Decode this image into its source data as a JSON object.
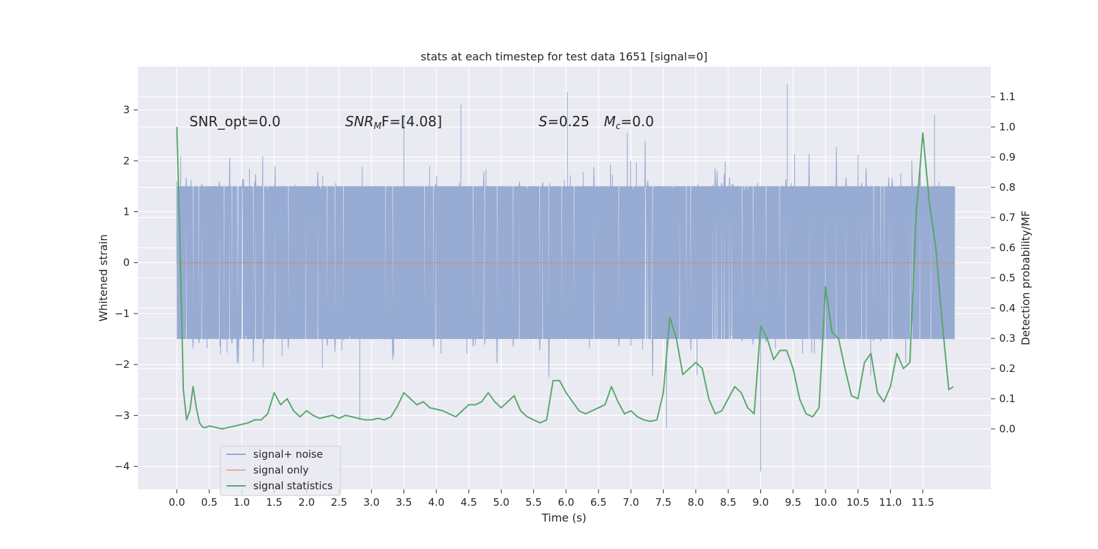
{
  "chart_data": {
    "type": "line",
    "title": "stats at each timestep for test data 1651 [signal=0]",
    "xlabel": "Time (s)",
    "ylabel": "Whitened strain",
    "ylabel_right": "Detection probability/MF",
    "xlim": [
      -0.6,
      12.55
    ],
    "ylim": [
      -4.45,
      3.85
    ],
    "ylim_right": [
      -0.2,
      1.2
    ],
    "xticks": [
      0.0,
      0.5,
      1.0,
      1.5,
      2.0,
      2.5,
      3.0,
      3.5,
      4.0,
      4.5,
      5.0,
      5.5,
      6.0,
      6.5,
      7.0,
      7.5,
      8.0,
      8.5,
      9.0,
      9.5,
      10.0,
      10.5,
      11.0,
      11.5
    ],
    "xtick_labels": [
      "0.0",
      "0.5",
      "1.0",
      "1.5",
      "2.0",
      "2.5",
      "3.0",
      "3.5",
      "4.0",
      "4.5",
      "5.0",
      "5.5",
      "6.0",
      "6.5",
      "7.0",
      "7.5",
      "8.0",
      "8.5",
      "9.0",
      "9.5",
      "10.0",
      "10.5",
      "11.0",
      "11.5"
    ],
    "yticks": [
      3,
      2,
      1,
      0,
      -1,
      -2,
      -3,
      -4
    ],
    "ytick_labels": [
      "3",
      "2",
      "1",
      "0",
      "−1",
      "−2",
      "−3",
      "−4"
    ],
    "yticks_right": [
      1.1,
      1.0,
      0.9,
      0.8,
      0.7,
      0.6,
      0.5,
      0.4,
      0.3,
      0.2,
      0.1,
      0.0
    ],
    "ytick_labels_right": [
      "1.1",
      "1.0",
      "0.9",
      "0.8",
      "0.7",
      "0.6",
      "0.5",
      "0.4",
      "0.3",
      "0.2",
      "0.1",
      "0.0"
    ],
    "grid": true,
    "legend_position": "lower-left",
    "annotations": {
      "snr_opt": "SNR_opt=0.0",
      "snr_mf_main": "SNR",
      "snr_mf_sub": "M",
      "snr_mf_rest": "F=[4.08]",
      "s_main": "S",
      "s_rest": "=0.25",
      "mc_main": "M",
      "mc_sub": "c",
      "mc_rest": "=0.0"
    },
    "series": [
      {
        "name": "signal+ noise",
        "color": "#92a8d1",
        "axis": "left",
        "t_range": [
          0.0,
          11.99
        ],
        "typical_amplitude": 1.5,
        "notable_peaks": [
          [
            0.0,
            1.6
          ],
          [
            6.02,
            3.35
          ],
          [
            9.41,
            3.5
          ],
          [
            3.5,
            2.9
          ],
          [
            9.0,
            -4.1
          ],
          [
            2.82,
            -3.1
          ],
          [
            4.38,
            3.1
          ],
          [
            7.55,
            -3.25
          ],
          [
            11.68,
            2.9
          ]
        ]
      },
      {
        "name": "signal only",
        "color": "#dd8452",
        "axis": "left",
        "x": [
          0.0,
          11.99
        ],
        "y": [
          0.0,
          0.0
        ]
      },
      {
        "name": "signal statistics",
        "color": "#55a868",
        "axis": "right",
        "x": [
          0.0,
          0.05,
          0.1,
          0.15,
          0.2,
          0.25,
          0.3,
          0.35,
          0.4,
          0.45,
          0.5,
          0.6,
          0.7,
          0.8,
          0.9,
          1.0,
          1.1,
          1.2,
          1.3,
          1.4,
          1.5,
          1.6,
          1.7,
          1.8,
          1.9,
          2.0,
          2.1,
          2.2,
          2.3,
          2.4,
          2.5,
          2.6,
          2.7,
          2.8,
          2.9,
          3.0,
          3.1,
          3.2,
          3.3,
          3.4,
          3.5,
          3.6,
          3.7,
          3.8,
          3.9,
          4.0,
          4.1,
          4.2,
          4.3,
          4.4,
          4.5,
          4.6,
          4.7,
          4.8,
          4.9,
          5.0,
          5.1,
          5.2,
          5.3,
          5.4,
          5.5,
          5.6,
          5.7,
          5.8,
          5.9,
          6.0,
          6.1,
          6.2,
          6.3,
          6.4,
          6.5,
          6.6,
          6.7,
          6.8,
          6.9,
          7.0,
          7.1,
          7.2,
          7.3,
          7.4,
          7.5,
          7.6,
          7.7,
          7.8,
          7.9,
          8.0,
          8.1,
          8.2,
          8.3,
          8.4,
          8.5,
          8.6,
          8.7,
          8.8,
          8.9,
          9.0,
          9.1,
          9.2,
          9.3,
          9.4,
          9.5,
          9.6,
          9.7,
          9.8,
          9.9,
          10.0,
          10.1,
          10.2,
          10.3,
          10.4,
          10.5,
          10.6,
          10.7,
          10.8,
          10.9,
          11.0,
          11.1,
          11.2,
          11.3,
          11.4,
          11.5,
          11.6,
          11.7,
          11.8,
          11.9,
          11.97
        ],
        "y": [
          1.0,
          0.6,
          0.13,
          0.03,
          0.06,
          0.14,
          0.07,
          0.02,
          0.005,
          0.005,
          0.01,
          0.005,
          0.0,
          0.005,
          0.01,
          0.015,
          0.02,
          0.03,
          0.03,
          0.05,
          0.12,
          0.08,
          0.1,
          0.06,
          0.04,
          0.06,
          0.045,
          0.035,
          0.04,
          0.045,
          0.035,
          0.045,
          0.04,
          0.035,
          0.03,
          0.03,
          0.035,
          0.03,
          0.04,
          0.075,
          0.12,
          0.1,
          0.08,
          0.09,
          0.07,
          0.065,
          0.06,
          0.05,
          0.04,
          0.06,
          0.08,
          0.08,
          0.09,
          0.12,
          0.09,
          0.07,
          0.09,
          0.11,
          0.06,
          0.04,
          0.03,
          0.02,
          0.03,
          0.16,
          0.16,
          0.12,
          0.09,
          0.06,
          0.05,
          0.06,
          0.07,
          0.08,
          0.14,
          0.09,
          0.05,
          0.06,
          0.04,
          0.03,
          0.025,
          0.03,
          0.12,
          0.37,
          0.3,
          0.18,
          0.2,
          0.22,
          0.2,
          0.1,
          0.05,
          0.06,
          0.1,
          0.14,
          0.12,
          0.07,
          0.05,
          0.34,
          0.3,
          0.23,
          0.26,
          0.26,
          0.2,
          0.1,
          0.05,
          0.04,
          0.07,
          0.47,
          0.32,
          0.3,
          0.2,
          0.11,
          0.1,
          0.22,
          0.25,
          0.12,
          0.09,
          0.14,
          0.25,
          0.2,
          0.22,
          0.72,
          0.98,
          0.75,
          0.6,
          0.35,
          0.13,
          0.14
        ]
      }
    ]
  },
  "legend": {
    "items": [
      {
        "label": "signal+ noise",
        "color": "#92a8d1"
      },
      {
        "label": "signal only",
        "color": "#dd8452"
      },
      {
        "label": "signal statistics",
        "color": "#55a868"
      }
    ]
  }
}
